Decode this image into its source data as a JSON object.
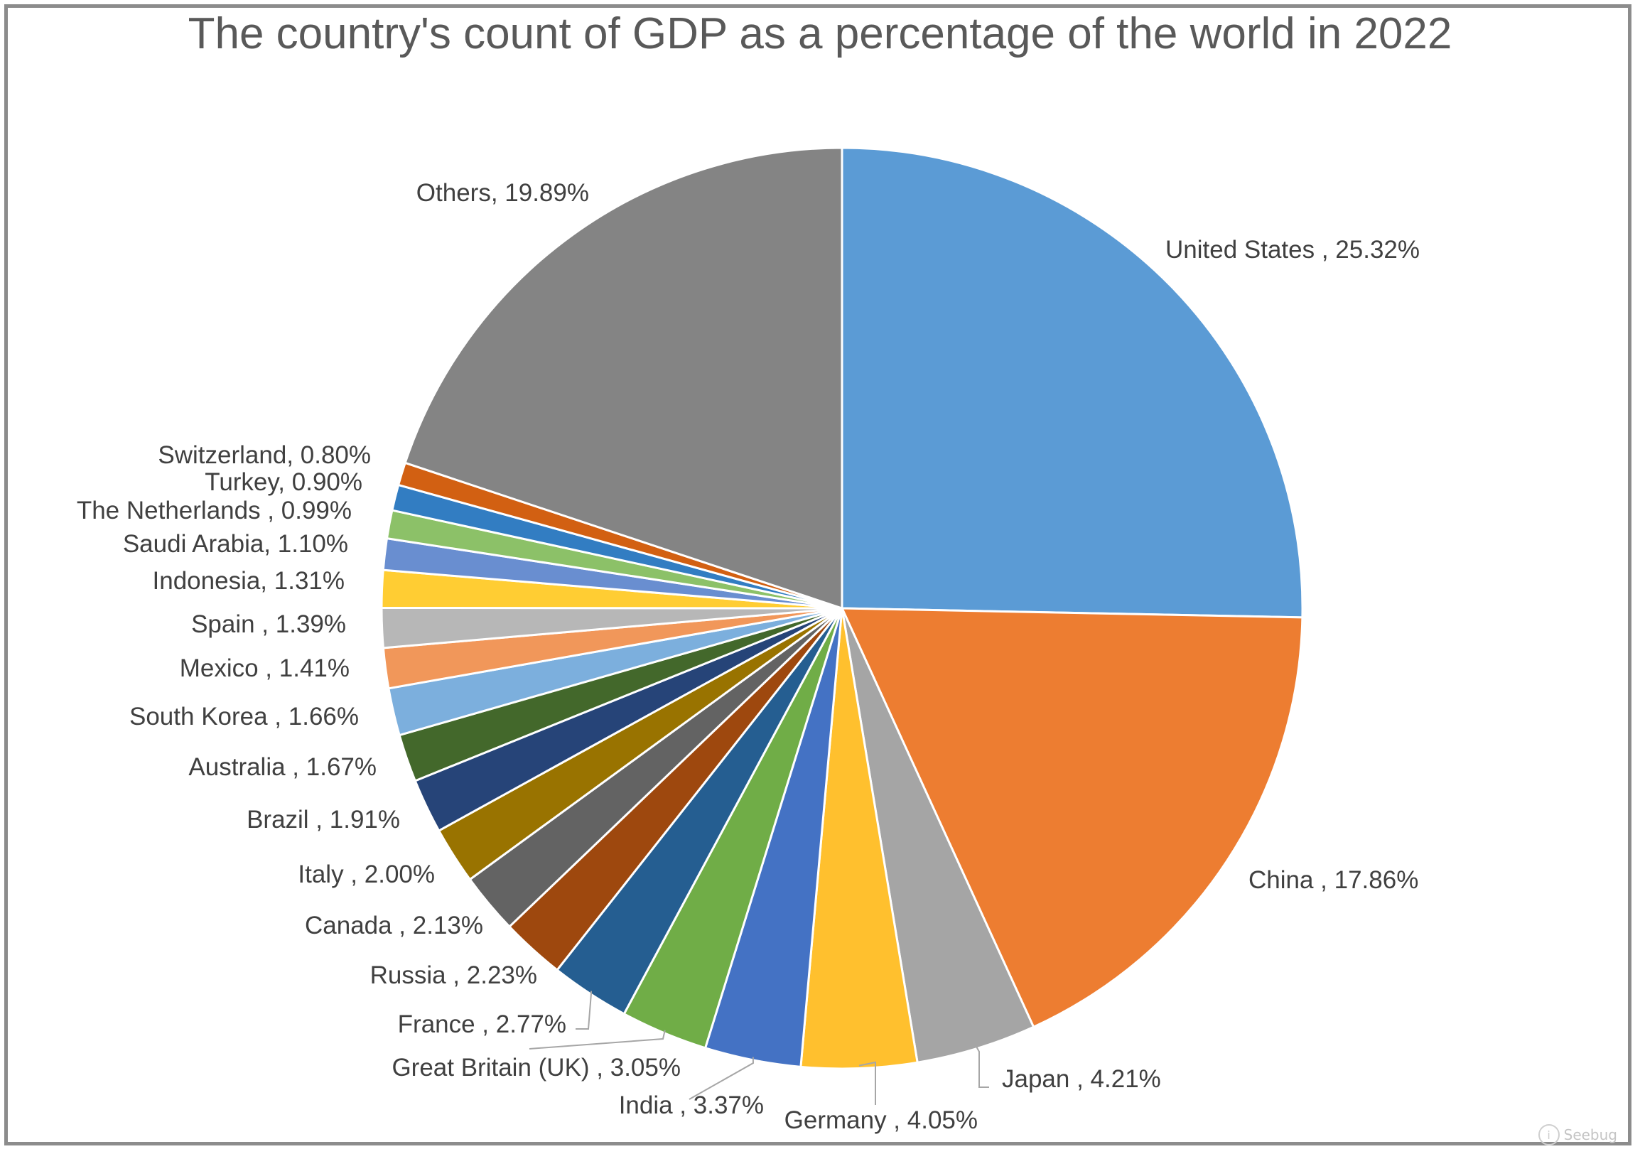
{
  "chart_data": {
    "type": "pie",
    "title": "The country's count of GDP as a percentage of the world in 2022",
    "categories": [
      "United States",
      "China",
      "Japan",
      "Germany",
      "India",
      "Great Britain (UK)",
      "France",
      "Russia",
      "Canada",
      "Italy",
      "Brazil",
      "Australia",
      "South Korea",
      "Mexico",
      "Spain",
      "Indonesia",
      "Saudi Arabia",
      "The Netherlands",
      "Turkey",
      "Switzerland",
      "Others"
    ],
    "values": [
      25.32,
      17.86,
      4.21,
      4.05,
      3.37,
      3.05,
      2.77,
      2.23,
      2.13,
      2.0,
      1.91,
      1.67,
      1.66,
      1.41,
      1.39,
      1.31,
      1.1,
      0.99,
      0.9,
      0.8,
      19.89
    ],
    "labels": [
      "United States , 25.32%",
      "China , 17.86%",
      "Japan , 4.21%",
      "Germany , 4.05%",
      "India , 3.37%",
      "Great Britain (UK) , 3.05%",
      "France , 2.77%",
      "Russia , 2.23%",
      "Canada , 2.13%",
      "Italy , 2.00%",
      "Brazil , 1.91%",
      "Australia , 1.67%",
      "South Korea , 1.66%",
      "Mexico , 1.41%",
      "Spain , 1.39%",
      "Indonesia, 1.31%",
      "Saudi Arabia, 1.10%",
      "The Netherlands , 0.99%",
      "Turkey, 0.90%",
      "Switzerland, 0.80%",
      "Others, 19.89%"
    ],
    "colors": [
      "#5b9bd5",
      "#ed7d31",
      "#a5a5a5",
      "#ffc02e",
      "#4472c4",
      "#70ad47",
      "#255e91",
      "#9e480e",
      "#636363",
      "#997300",
      "#264478",
      "#43682b",
      "#7cafdd",
      "#f1975a",
      "#b7b7b7",
      "#ffcd33",
      "#698ed0",
      "#8cc168",
      "#327dc2",
      "#d26012",
      "#848484"
    ],
    "start": "12 o'clock",
    "direction": "clockwise",
    "legend": "none"
  },
  "watermark": {
    "text": "Seebug",
    "icon": "seebug-logo-icon"
  }
}
